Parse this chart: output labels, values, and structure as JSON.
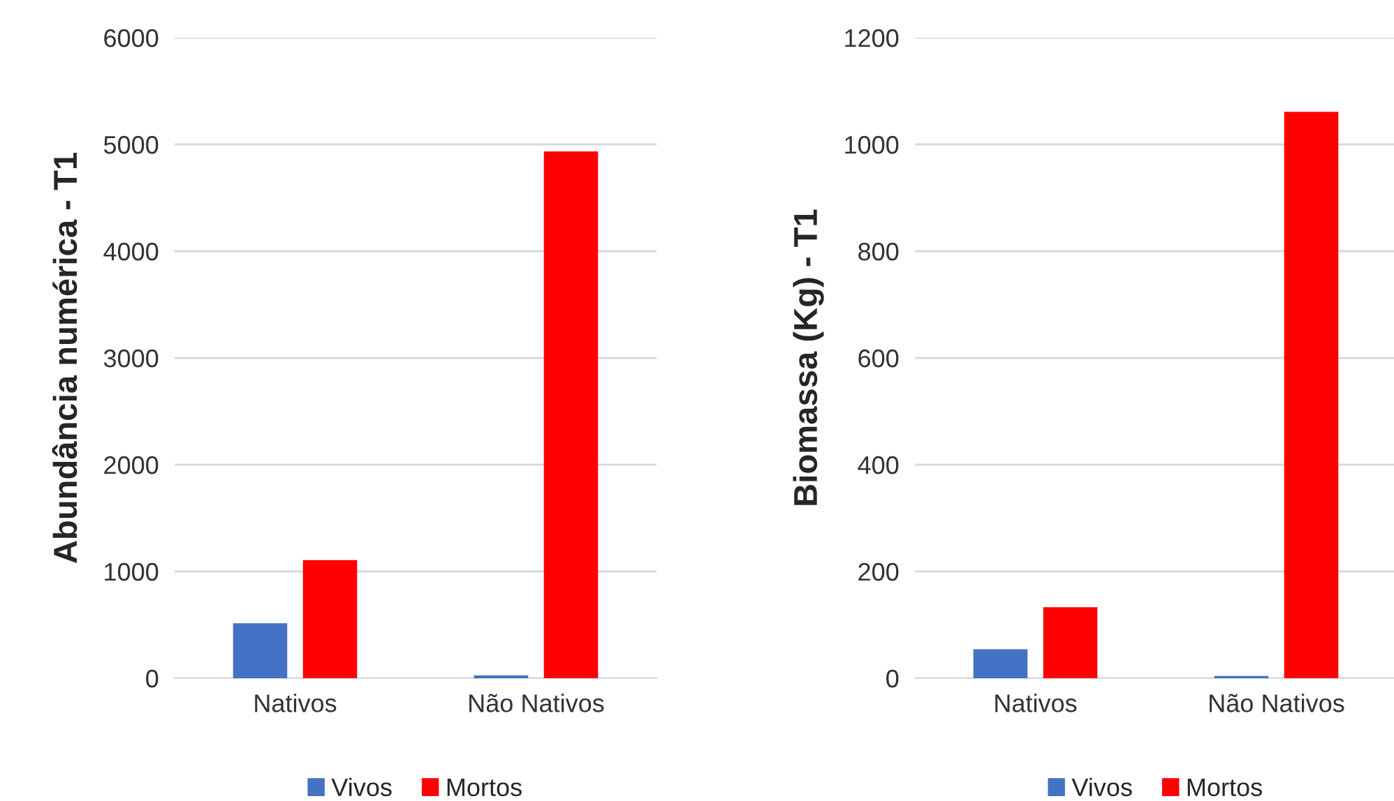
{
  "chart_data": [
    {
      "type": "bar",
      "ylabel": "Abundância numérica - T1",
      "categories": [
        "Nativos",
        "Não Nativos"
      ],
      "series": [
        {
          "name": "Vivos",
          "color": "#4472c4",
          "values": [
            510,
            20
          ]
        },
        {
          "name": "Mortos",
          "color": "#ff0000",
          "values": [
            1100,
            4930
          ]
        }
      ],
      "ylim": [
        0,
        6000
      ],
      "yticks": [
        0,
        1000,
        2000,
        3000,
        4000,
        5000,
        6000
      ],
      "grid": "y",
      "legend": "bottom"
    },
    {
      "type": "bar",
      "ylabel": "Biomassa (Kg) - T1",
      "categories": [
        "Nativos",
        "Não Nativos"
      ],
      "series": [
        {
          "name": "Vivos",
          "color": "#4472c4",
          "values": [
            53,
            3
          ]
        },
        {
          "name": "Mortos",
          "color": "#ff0000",
          "values": [
            132,
            1060
          ]
        }
      ],
      "ylim": [
        0,
        1200
      ],
      "yticks": [
        0,
        200,
        400,
        600,
        800,
        1000,
        1200
      ],
      "grid": "y",
      "legend": "bottom"
    }
  ]
}
